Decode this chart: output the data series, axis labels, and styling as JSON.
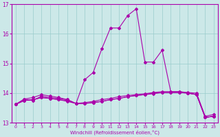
{
  "xlabel": "Windchill (Refroidissement éolien,°C)",
  "bg_color": "#cce8e8",
  "grid_color": "#99cccc",
  "line_color": "#aa00aa",
  "xlim": [
    -0.5,
    23.5
  ],
  "ylim": [
    13,
    17
  ],
  "yticks": [
    13,
    14,
    15,
    16,
    17
  ],
  "xticks": [
    0,
    1,
    2,
    3,
    4,
    5,
    6,
    7,
    8,
    9,
    10,
    11,
    12,
    13,
    14,
    15,
    16,
    17,
    18,
    19,
    20,
    21,
    22,
    23
  ],
  "lines": [
    [
      0,
      13.62,
      1,
      13.8,
      2,
      13.75,
      3,
      13.9,
      4,
      13.85,
      5,
      13.82,
      6,
      13.78,
      7,
      13.65,
      8,
      13.65,
      9,
      13.68,
      10,
      13.72,
      11,
      13.78,
      12,
      13.82,
      13,
      13.88,
      14,
      13.92,
      15,
      13.95,
      16,
      14.0,
      17,
      14.02,
      18,
      14.02,
      19,
      14.02,
      20,
      14.0,
      21,
      13.95,
      22,
      13.18,
      23,
      13.22
    ],
    [
      0,
      13.62,
      1,
      13.75,
      2,
      13.78,
      3,
      13.85,
      4,
      13.82,
      5,
      13.78,
      6,
      13.75,
      7,
      13.65,
      8,
      13.68,
      9,
      13.72,
      10,
      13.78,
      11,
      13.82,
      12,
      13.88,
      13,
      13.92,
      14,
      13.95,
      15,
      13.98,
      16,
      14.02,
      17,
      14.05,
      18,
      14.05,
      19,
      14.05,
      20,
      14.02,
      21,
      14.0,
      22,
      13.22,
      23,
      13.28
    ],
    [
      0,
      13.62,
      1,
      13.75,
      2,
      13.78,
      3,
      13.85,
      4,
      13.82,
      5,
      13.78,
      6,
      13.72,
      7,
      13.65,
      8,
      13.65,
      9,
      13.68,
      10,
      13.72,
      11,
      13.78,
      12,
      13.82,
      13,
      13.88,
      14,
      13.92,
      15,
      13.95,
      16,
      13.98,
      17,
      14.02,
      18,
      14.02,
      19,
      14.02,
      20,
      14.0,
      21,
      13.95,
      22,
      13.18,
      23,
      13.22
    ],
    [
      0,
      13.62,
      1,
      13.8,
      2,
      13.85,
      3,
      13.95,
      4,
      13.9,
      5,
      13.85,
      6,
      13.78,
      7,
      13.65,
      8,
      14.45,
      9,
      14.7,
      10,
      15.5,
      11,
      16.2,
      12,
      16.2,
      13,
      16.62,
      14,
      16.85,
      15,
      15.05,
      16,
      15.05,
      17,
      15.45,
      18,
      14.05,
      19,
      14.05,
      20,
      14.0,
      21,
      13.95,
      22,
      13.18,
      23,
      13.22
    ]
  ]
}
